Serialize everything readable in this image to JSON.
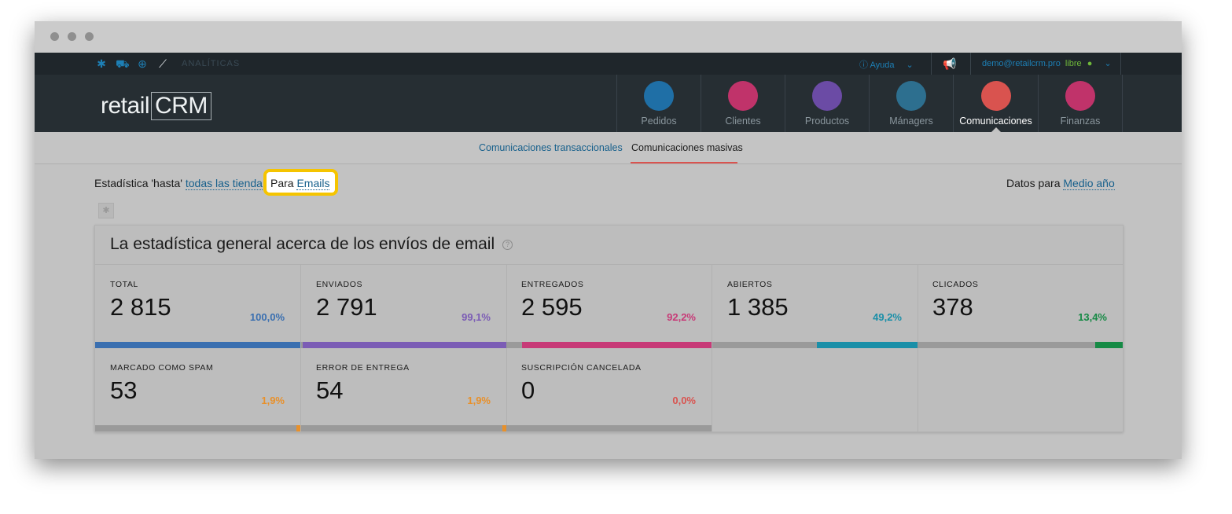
{
  "topbar": {
    "section_label": "ANALÍTICAS",
    "help_label": "Ayuda",
    "user_email": "demo@retailcrm.pro",
    "status_label": "libre"
  },
  "logo": {
    "text_main": "retail",
    "text_crm": "CRM"
  },
  "nav": {
    "items": [
      {
        "label": "Pedidos",
        "color": "#1f6fa6"
      },
      {
        "label": "Clientes",
        "color": "#c0336a"
      },
      {
        "label": "Productos",
        "color": "#6b4ba5"
      },
      {
        "label": "Mánagers",
        "color": "#2d6f8f"
      },
      {
        "label": "Comunicaciones",
        "color": "#d9534f"
      },
      {
        "label": "Finanzas",
        "color": "#c0336a"
      }
    ],
    "active_index": 4
  },
  "subnav": {
    "tabs": [
      "Comunicaciones transaccionales",
      "Comunicaciones masivas"
    ],
    "active_index": 1
  },
  "filter": {
    "prefix": "Estadística 'hasta'",
    "stores_link": "todas las tienda",
    "para_label": "Para",
    "channel_link": "Emails",
    "period_prefix": "Datos para",
    "period_link": "Medio año"
  },
  "panel": {
    "title": "La estadística general acerca de los envíos de email",
    "help_mark": "?",
    "stats": [
      {
        "label": "TOTAL",
        "value": "2 815",
        "percent": "100,0%",
        "fill": 1.0,
        "color": "#3a6fb0"
      },
      {
        "label": "ENVIADOS",
        "value": "2 791",
        "percent": "99,1%",
        "fill": 0.991,
        "color": "#7b5cb5"
      },
      {
        "label": "ENTREGADOS",
        "value": "2 595",
        "percent": "92,2%",
        "fill": 0.922,
        "color": "#c73a77"
      },
      {
        "label": "ABIERTOS",
        "value": "1 385",
        "percent": "49,2%",
        "fill": 0.492,
        "color": "#1a8fa8"
      },
      {
        "label": "CLICADOS",
        "value": "378",
        "percent": "13,4%",
        "fill": 0.134,
        "color": "#168a45"
      },
      {
        "label": "MARCADO COMO SPAM",
        "value": "53",
        "percent": "1,9%",
        "fill": 0.019,
        "color": "#e8902a"
      },
      {
        "label": "ERROR DE ENTREGA",
        "value": "54",
        "percent": "1,9%",
        "fill": 0.019,
        "color": "#e8902a"
      },
      {
        "label": "SUSCRIPCIÓN CANCELADA",
        "value": "0",
        "percent": "0,0%",
        "fill": 0.0,
        "color": "#d9534f"
      }
    ]
  }
}
